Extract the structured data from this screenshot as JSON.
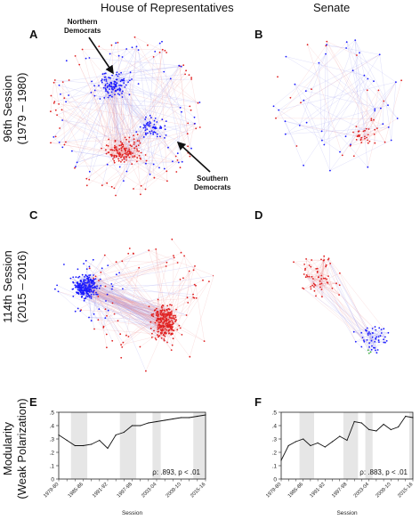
{
  "columns": {
    "house": "House of Representatives",
    "senate": "Senate"
  },
  "rows": {
    "row1_line1": "96th Session",
    "row1_line2": "(1979 – 1980)",
    "row2_line1": "114th Session",
    "row2_line2": "(2015 – 2016)",
    "row3_line1": "Modularity",
    "row3_line2": "(Weak Polarization)"
  },
  "panels": {
    "A": "A",
    "B": "B",
    "C": "C",
    "D": "D",
    "E": "E",
    "F": "F"
  },
  "annotations": {
    "northern_line1": "Northern",
    "northern_line2": "Democrats",
    "southern_line1": "Southern",
    "southern_line2": "Democrats"
  },
  "colors": {
    "democrat": "#1a1aff",
    "republican": "#e02020",
    "independent": "#40b040",
    "edge_dem": "#9a9aee",
    "edge_rep": "#ee9a9a",
    "band": "#e6e6e6"
  },
  "chart_data": [
    {
      "type": "line",
      "panel": "E",
      "xlabel": "Session",
      "ylabel": "",
      "x": [
        "1979-80",
        "1981-82",
        "1983-84",
        "1985-86",
        "1987-88",
        "1989-90",
        "1991-92",
        "1993-94",
        "1995-96",
        "1997-98",
        "1999-00",
        "2001-02",
        "2003-04",
        "2005-06",
        "2007-08",
        "2009-10",
        "2011-12",
        "2013-14",
        "2015-16"
      ],
      "tick_labels": [
        "1979-80",
        "1985-86",
        "1991-92",
        "1997-98",
        "2003-04",
        "2009-10",
        "2015-16"
      ],
      "values": [
        0.33,
        0.29,
        0.25,
        0.25,
        0.26,
        0.29,
        0.23,
        0.33,
        0.35,
        0.4,
        0.4,
        0.42,
        0.43,
        0.44,
        0.45,
        0.46,
        0.46,
        0.47,
        0.48
      ],
      "shaded_ranges": [
        [
          "1983-84",
          "1985-86"
        ],
        [
          "1995-96",
          "1997-98"
        ],
        [
          "2003-04",
          "2003-04"
        ],
        [
          "2013-14",
          "2015-16"
        ]
      ],
      "ylim": [
        0,
        0.5
      ],
      "yticks": [
        "0",
        ".1",
        ".2",
        ".3",
        ".4",
        ".5"
      ],
      "annotation": "ρ: .893, p < .01"
    },
    {
      "type": "line",
      "panel": "F",
      "xlabel": "Session",
      "ylabel": "",
      "x": [
        "1979-80",
        "1981-82",
        "1983-84",
        "1985-86",
        "1987-88",
        "1989-90",
        "1991-92",
        "1993-94",
        "1995-96",
        "1997-98",
        "1999-00",
        "2001-02",
        "2003-04",
        "2005-06",
        "2007-08",
        "2009-10",
        "2011-12",
        "2013-14",
        "2015-16"
      ],
      "tick_labels": [
        "1979-80",
        "1985-86",
        "1991-92",
        "1997-98",
        "2003-04",
        "2009-10",
        "2015-16"
      ],
      "values": [
        0.14,
        0.25,
        0.28,
        0.3,
        0.25,
        0.27,
        0.24,
        0.28,
        0.32,
        0.29,
        0.43,
        0.42,
        0.37,
        0.36,
        0.41,
        0.37,
        0.39,
        0.47,
        0.46
      ],
      "shaded_ranges": [
        [
          "1985-86",
          "1987-88"
        ],
        [
          "1997-98",
          "1999-00"
        ],
        [
          "2003-04",
          "2003-04"
        ],
        [
          "2015-16",
          "2015-16"
        ]
      ],
      "ylim": [
        0,
        0.5
      ],
      "yticks": [
        "0",
        ".1",
        ".2",
        ".3",
        ".4",
        ".5"
      ],
      "annotation": "ρ: .883, p < .01"
    }
  ]
}
